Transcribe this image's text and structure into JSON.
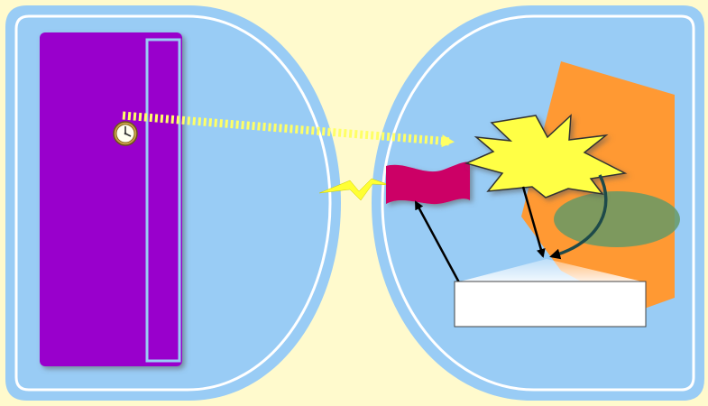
{
  "colors": {
    "page_background": "#FFFACD",
    "panel_fill": "#99CCF5",
    "panel_outline": "#FFFFFF",
    "door_fill": "#9900CC",
    "door_edge_fill": "#9900CC",
    "door_edge_outline": "#99CCF5",
    "beam_color": "#FFFF66",
    "starburst_fill": "#FFFF44",
    "flag_fill": "#CC0066",
    "orange_sheet": "#FF9933",
    "ellipse_fill": "#669966",
    "arrow_color": "#000000",
    "lightning_color": "#FFFF33",
    "callout_fill": "#FFFFFF"
  },
  "icons": {
    "clock": "clock-icon",
    "lightning": "lightning-bolt-icon",
    "starburst": "starburst-icon",
    "flag": "flag-icon"
  },
  "callout": {
    "text": ""
  }
}
